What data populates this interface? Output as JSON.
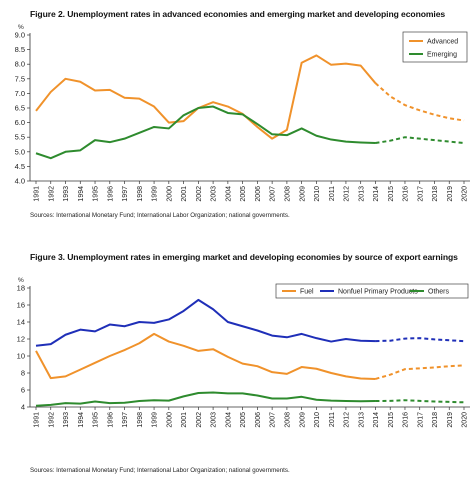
{
  "chart_data": [
    {
      "type": "line",
      "title": "Figure 2. Unemployment rates in advanced economies and emerging market and developing economies",
      "ylabel": "%",
      "source": "Sources: International Monetary Fund; International Labor Organization; national governments.",
      "ylim": [
        4.0,
        9.0
      ],
      "yticks": [
        "9.0",
        "8.5",
        "8.0",
        "7.5",
        "7.0",
        "6.5",
        "6.0",
        "5.5",
        "5.0",
        "4.5",
        "4.0"
      ],
      "grid": false,
      "legend": "top-right",
      "x": [
        "1991",
        "1992",
        "1993",
        "1994",
        "1995",
        "1996",
        "1997",
        "1998",
        "1999",
        "2000",
        "2001",
        "2002",
        "2003",
        "2004",
        "2005",
        "2006",
        "2007",
        "2008",
        "2009",
        "2010",
        "2011",
        "2012",
        "2013",
        "2014",
        "2015",
        "2016",
        "2017",
        "2018",
        "2019",
        "2020"
      ],
      "series": [
        {
          "name": "Advanced",
          "color": "#f0922b",
          "values": [
            6.4,
            7.05,
            7.5,
            7.4,
            7.1,
            7.12,
            6.85,
            6.82,
            6.55,
            6.0,
            6.05,
            6.5,
            6.7,
            6.55,
            6.3,
            5.85,
            5.45,
            5.75,
            8.05,
            8.3,
            7.98,
            8.02,
            7.95,
            7.35,
            6.9,
            6.6,
            6.42,
            6.27,
            6.15,
            6.07
          ],
          "projection_from": "2014"
        },
        {
          "name": "Emerging",
          "color": "#2e8b2e",
          "values": [
            4.95,
            4.78,
            5.0,
            5.05,
            5.4,
            5.33,
            5.45,
            5.65,
            5.85,
            5.8,
            6.25,
            6.5,
            6.55,
            6.33,
            6.28,
            5.95,
            5.6,
            5.57,
            5.8,
            5.55,
            5.42,
            5.35,
            5.32,
            5.3,
            5.38,
            5.5,
            5.45,
            5.4,
            5.35,
            5.3
          ],
          "projection_from": "2014"
        }
      ]
    },
    {
      "type": "line",
      "title": "Figure 3. Unemployment rates in emerging market and developing economies by source of export earnings",
      "ylabel": "%",
      "source": "Sources: International Monetary Fund; International Labor Organization; national governments.",
      "ylim": [
        4,
        18
      ],
      "yticks": [
        "18",
        "16",
        "14",
        "12",
        "10",
        "8",
        "6",
        "4"
      ],
      "grid": false,
      "legend": "top",
      "x": [
        "1991",
        "1992",
        "1993",
        "1994",
        "1995",
        "1996",
        "1997",
        "1998",
        "1999",
        "2000",
        "2001",
        "2002",
        "2003",
        "2004",
        "2005",
        "2006",
        "2007",
        "2008",
        "2009",
        "2010",
        "2011",
        "2012",
        "2013",
        "2014",
        "2015",
        "2016",
        "2017",
        "2018",
        "2019",
        "2020"
      ],
      "series": [
        {
          "name": "Fuel",
          "color": "#f0922b",
          "values": [
            10.6,
            7.4,
            7.6,
            8.4,
            9.2,
            10.0,
            10.7,
            11.5,
            12.6,
            11.7,
            11.2,
            10.6,
            10.8,
            9.9,
            9.1,
            8.8,
            8.1,
            7.9,
            8.7,
            8.5,
            8.0,
            7.6,
            7.35,
            7.3,
            7.8,
            8.45,
            8.55,
            8.65,
            8.8,
            8.9
          ],
          "projection_from": "2014"
        },
        {
          "name": "Nonfuel Primary Products",
          "color": "#1f2fb8",
          "values": [
            11.2,
            11.4,
            12.5,
            13.1,
            12.9,
            13.7,
            13.5,
            14.0,
            13.9,
            14.3,
            15.3,
            16.6,
            15.5,
            14.0,
            13.5,
            13.0,
            12.4,
            12.2,
            12.6,
            12.1,
            11.7,
            12.0,
            11.8,
            11.75,
            11.8,
            12.05,
            12.1,
            11.95,
            11.85,
            11.75
          ],
          "projection_from": "2014"
        },
        {
          "name": "Others",
          "color": "#2e8b2e",
          "values": [
            4.15,
            4.25,
            4.45,
            4.4,
            4.65,
            4.45,
            4.5,
            4.7,
            4.8,
            4.75,
            5.25,
            5.65,
            5.7,
            5.6,
            5.6,
            5.35,
            5.0,
            5.0,
            5.2,
            4.85,
            4.75,
            4.7,
            4.68,
            4.7,
            4.72,
            4.8,
            4.72,
            4.65,
            4.6,
            4.55
          ],
          "projection_from": "2014"
        }
      ]
    }
  ]
}
